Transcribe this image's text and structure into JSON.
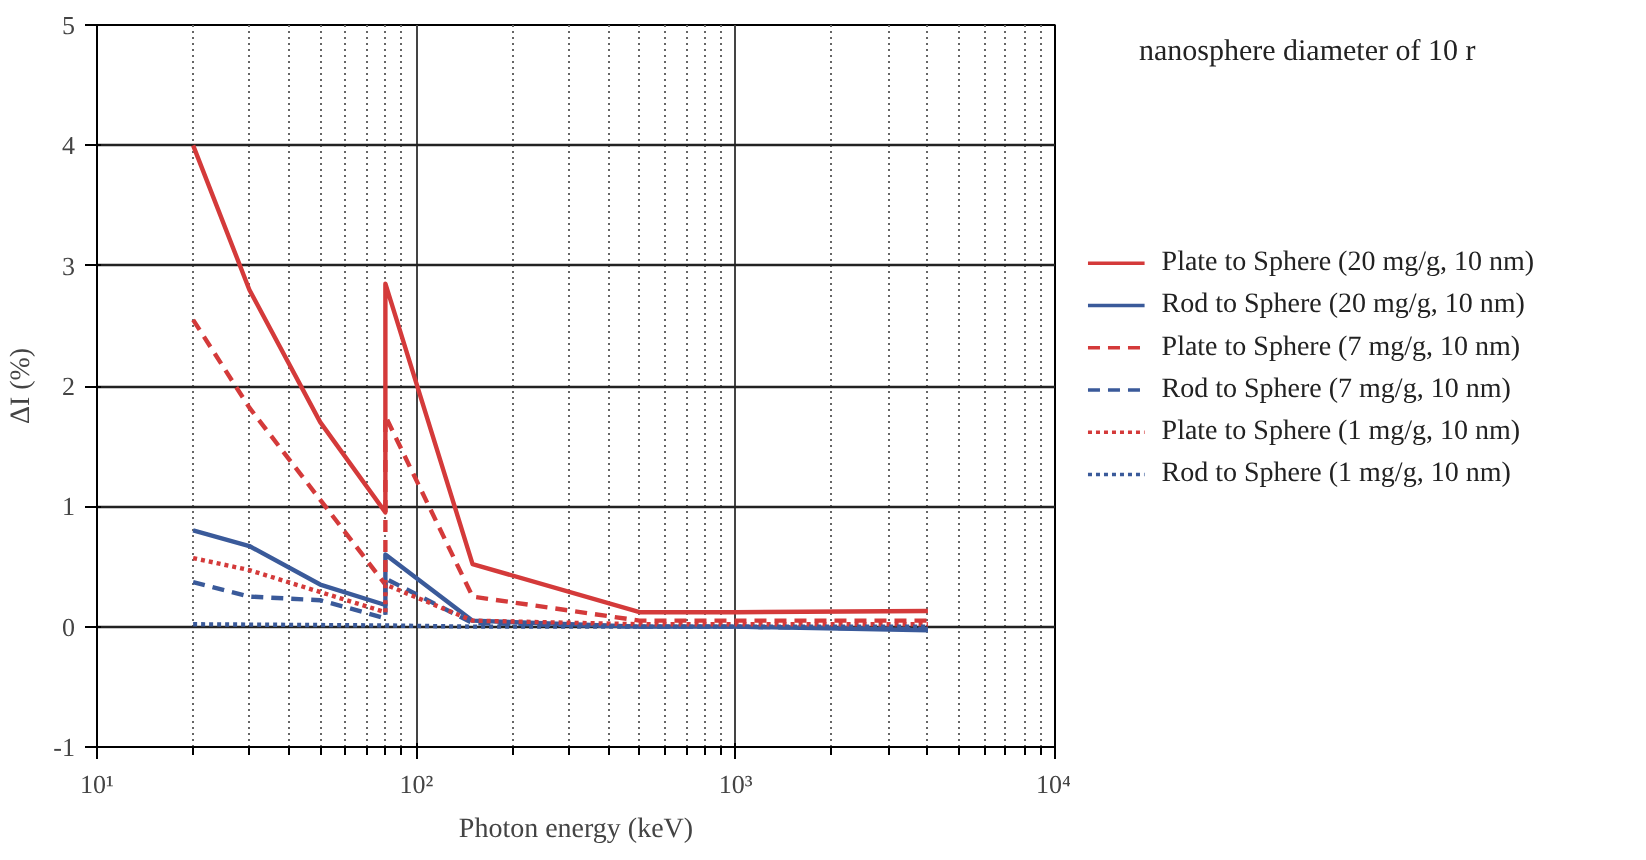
{
  "chart_data": {
    "type": "line",
    "xlabel": "Photon energy (keV)",
    "ylabel": "ΔI (%)",
    "annotations": [
      "nanosphere diameter of 10 r"
    ],
    "log": "x",
    "xlim": [
      10,
      10000
    ],
    "ylim": [
      -1,
      5
    ],
    "xticks": [
      {
        "value": 10,
        "label": "10¹"
      },
      {
        "value": 100,
        "label": "10²"
      },
      {
        "value": 1000,
        "label": "10³"
      },
      {
        "value": 10000,
        "label": "10⁴"
      }
    ],
    "yticks": [
      -1,
      0,
      1,
      2,
      3,
      4,
      5
    ],
    "grid": true,
    "legend": "right",
    "series": [
      {
        "name": "Plate to Sphere (20 mg/g, 10 nm)",
        "color": "#d43a3a",
        "line_style": "solid",
        "x": [
          20,
          30,
          50,
          80,
          80,
          150,
          500,
          1000,
          4000
        ],
        "values": [
          4.0,
          2.8,
          1.7,
          0.95,
          2.85,
          0.52,
          0.12,
          0.12,
          0.13
        ]
      },
      {
        "name": "Rod to Sphere (20 mg/g, 10 nm)",
        "color": "#3a5a9a",
        "line_style": "solid",
        "x": [
          20,
          30,
          50,
          80,
          80,
          150,
          500,
          1000,
          4000
        ],
        "values": [
          0.8,
          0.67,
          0.35,
          0.18,
          0.6,
          0.05,
          0.0,
          0.0,
          -0.03
        ]
      },
      {
        "name": "Plate to Sphere (7 mg/g, 10 nm)",
        "color": "#d43a3a",
        "line_style": "dashed",
        "x": [
          20,
          30,
          80,
          80,
          150,
          500,
          1000,
          4000
        ],
        "values": [
          2.55,
          1.82,
          0.35,
          1.75,
          0.25,
          0.05,
          0.05,
          0.05
        ]
      },
      {
        "name": "Rod to Sphere (7 mg/g, 10 nm)",
        "color": "#3a5a9a",
        "line_style": "dashed",
        "x": [
          20,
          30,
          50,
          80,
          80,
          150,
          500,
          1000,
          4000
        ],
        "values": [
          0.37,
          0.25,
          0.22,
          0.07,
          0.4,
          0.03,
          0.0,
          0.0,
          -0.02
        ]
      },
      {
        "name": "Plate to Sphere (1 mg/g, 10 nm)",
        "color": "#d43a3a",
        "line_style": "dotted",
        "x": [
          20,
          30,
          80,
          80,
          150,
          500,
          1000,
          4000
        ],
        "values": [
          0.57,
          0.47,
          0.12,
          0.35,
          0.05,
          0.02,
          0.02,
          0.02
        ]
      },
      {
        "name": "Rod to Sphere (1 mg/g, 10 nm)",
        "color": "#3a5a9a",
        "line_style": "dotted",
        "x": [
          20,
          80,
          150,
          500,
          1000,
          4000
        ],
        "values": [
          0.02,
          0.01,
          0.0,
          0.0,
          0.0,
          0.0
        ]
      }
    ]
  }
}
